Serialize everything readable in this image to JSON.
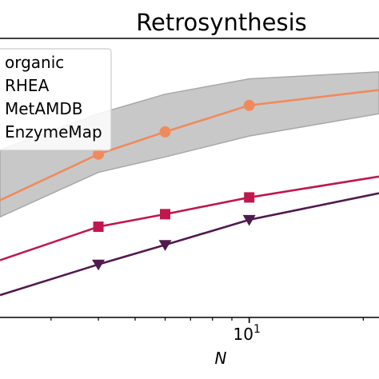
{
  "chart_data": {
    "type": "line",
    "title": "Retrosynthesis",
    "xlabel": "N",
    "ylabel": "",
    "xscale": "log",
    "xlim": [
      2.2,
      22
    ],
    "ylim": [
      0,
      1
    ],
    "grid": false,
    "legend": {
      "placement": "top-left",
      "entries": [
        "organic",
        "RHEA",
        "MetAMDB",
        "EnzymeMap"
      ]
    },
    "x_ticks": [
      {
        "value": 10,
        "base": "10",
        "exponent": "1"
      }
    ],
    "series": [
      {
        "name": "",
        "marker": "circle",
        "color": "#f08a5d",
        "x": [
          2.2,
          4,
          6,
          10,
          22
        ],
        "y": [
          0.42,
          0.585,
          0.665,
          0.76,
          0.815
        ]
      },
      {
        "name": "",
        "marker": "square",
        "color": "#c0174f",
        "x": [
          2.2,
          4,
          6,
          10,
          22
        ],
        "y": [
          0.205,
          0.325,
          0.37,
          0.43,
          0.505
        ]
      },
      {
        "name": "",
        "marker": "triangle-down",
        "color": "#511a4f",
        "x": [
          2.2,
          4,
          6,
          10,
          22
        ],
        "y": [
          0.08,
          0.19,
          0.26,
          0.35,
          0.445
        ]
      }
    ],
    "band": {
      "color": "#c8c8c8",
      "x": [
        2.2,
        4,
        6,
        10,
        22
      ],
      "upper": [
        0.6,
        0.73,
        0.8,
        0.855,
        0.88
      ],
      "lower": [
        0.36,
        0.52,
        0.575,
        0.65,
        0.73
      ]
    }
  }
}
